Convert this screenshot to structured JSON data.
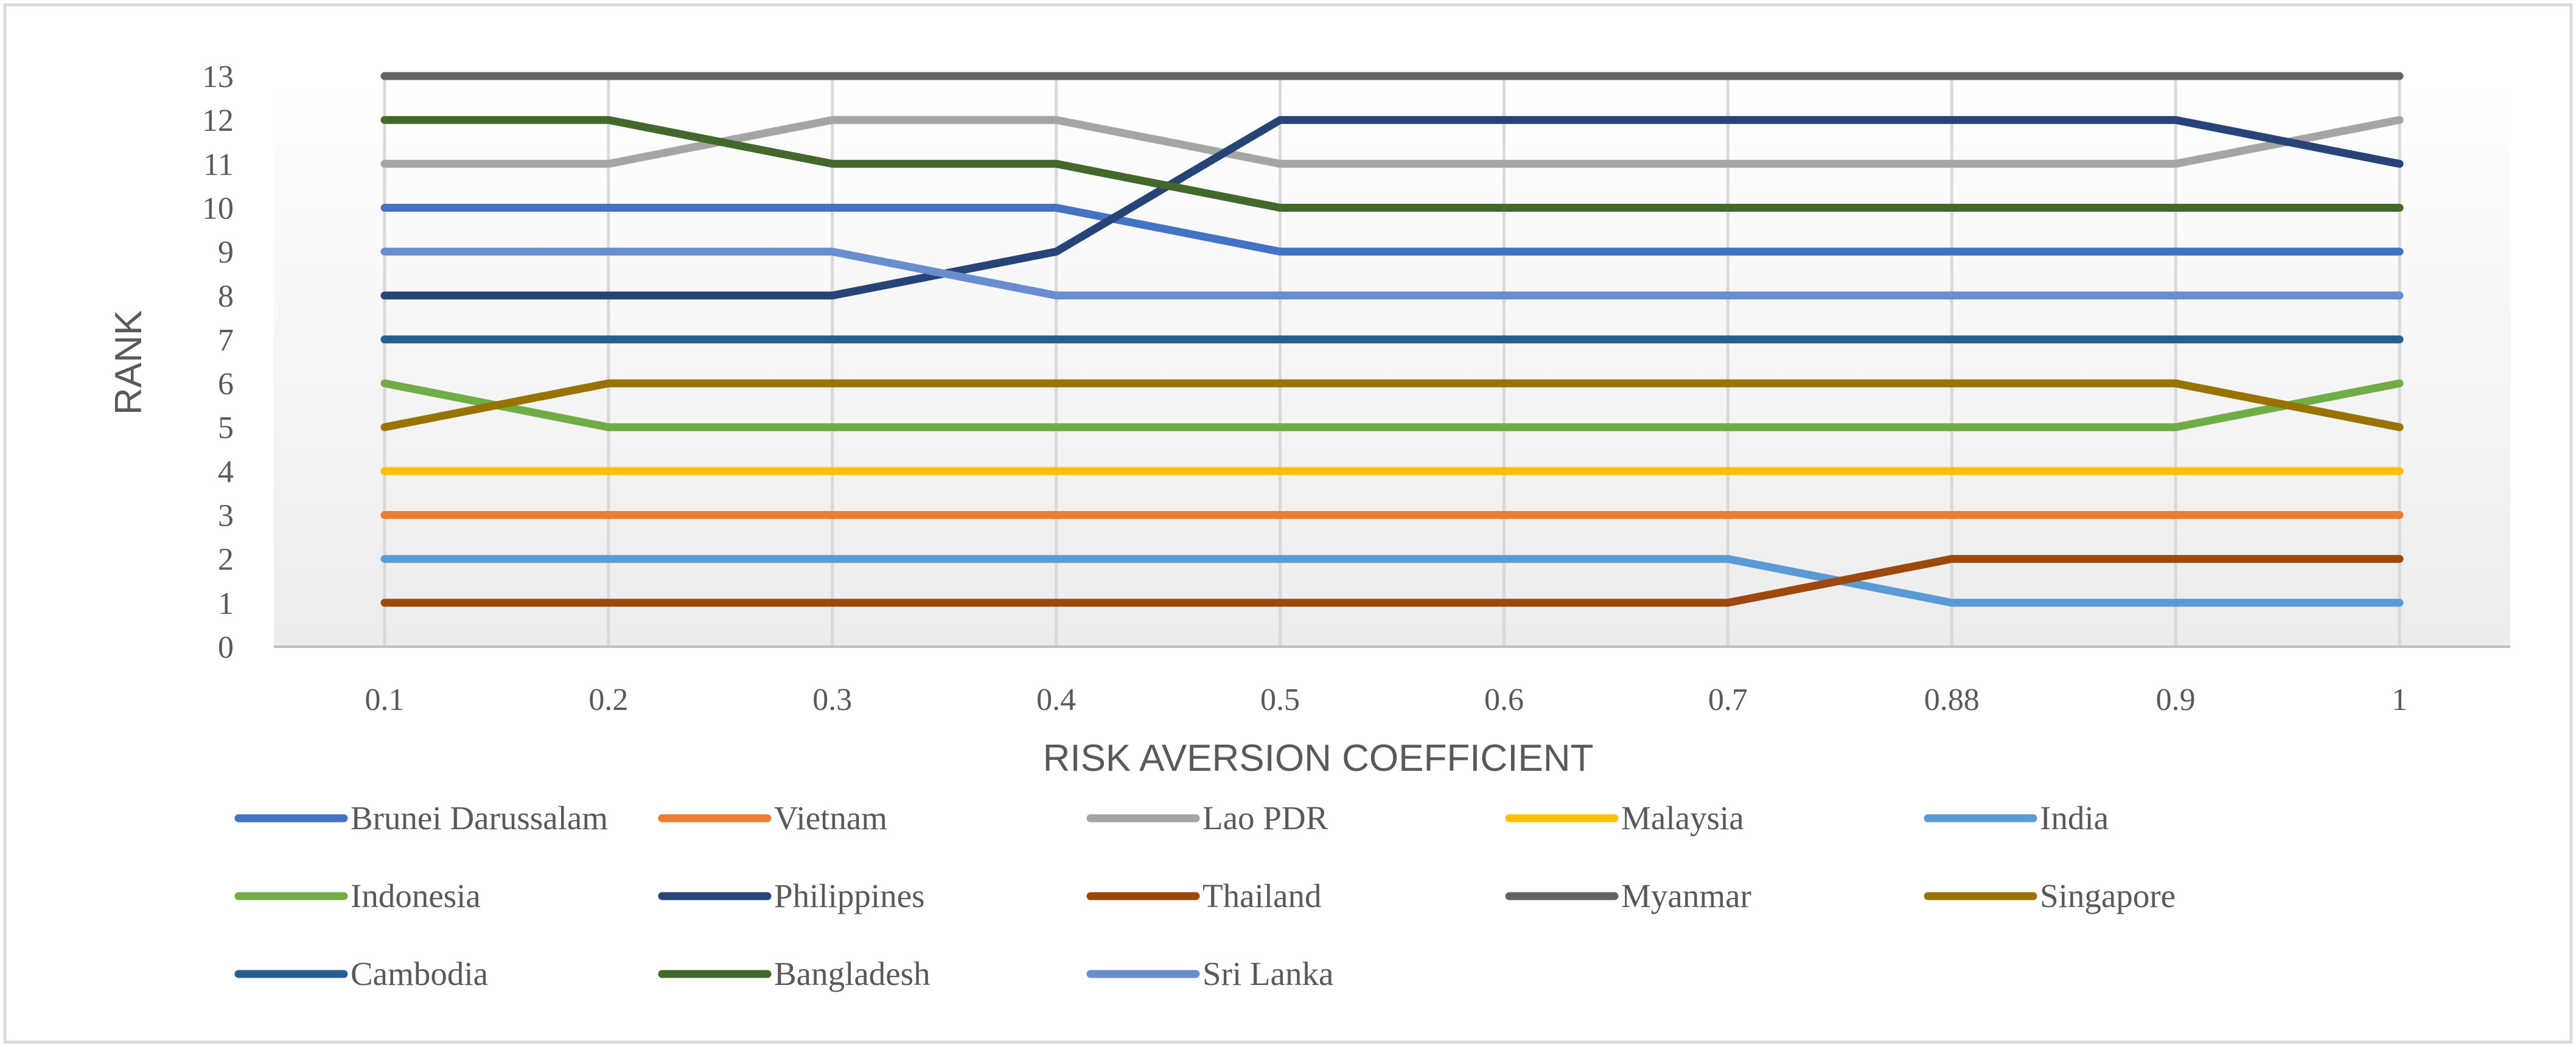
{
  "chart_data": {
    "type": "line",
    "title": "",
    "xlabel": "RISK AVERSION COEFFICIENT",
    "ylabel": "RANK",
    "categories": [
      "0.1",
      "0.2",
      "0.3",
      "0.4",
      "0.5",
      "0.6",
      "0.7",
      "0.88",
      "0.9",
      "1"
    ],
    "ylim": [
      0,
      13
    ],
    "yticks": [
      "0",
      "1",
      "2",
      "3",
      "4",
      "5",
      "6",
      "7",
      "8",
      "9",
      "10",
      "11",
      "12",
      "13"
    ],
    "grid": "vertical",
    "legend_position": "bottom",
    "series": [
      {
        "name": "Brunei Darussalam",
        "color": "#4472C4",
        "values": [
          10,
          10,
          10,
          10,
          9,
          9,
          9,
          9,
          9,
          9
        ]
      },
      {
        "name": "Vietnam",
        "color": "#ED7D31",
        "values": [
          3,
          3,
          3,
          3,
          3,
          3,
          3,
          3,
          3,
          3
        ]
      },
      {
        "name": "Lao PDR",
        "color": "#A5A5A5",
        "values": [
          11,
          11,
          12,
          12,
          11,
          11,
          11,
          11,
          11,
          12
        ]
      },
      {
        "name": "Malaysia",
        "color": "#FFC000",
        "values": [
          4,
          4,
          4,
          4,
          4,
          4,
          4,
          4,
          4,
          4
        ]
      },
      {
        "name": "India",
        "color": "#5B9BD5",
        "values": [
          2,
          2,
          2,
          2,
          2,
          2,
          2,
          1,
          1,
          1
        ]
      },
      {
        "name": "Indonesia",
        "color": "#70AD47",
        "values": [
          6,
          5,
          5,
          5,
          5,
          5,
          5,
          5,
          5,
          6
        ]
      },
      {
        "name": "Philippines",
        "color": "#264478",
        "values": [
          8,
          8,
          8,
          9,
          12,
          12,
          12,
          12,
          12,
          11
        ]
      },
      {
        "name": "Thailand",
        "color": "#9E480E",
        "values": [
          1,
          1,
          1,
          1,
          1,
          1,
          1,
          2,
          2,
          2
        ]
      },
      {
        "name": "Myanmar",
        "color": "#636363",
        "values": [
          13,
          13,
          13,
          13,
          13,
          13,
          13,
          13,
          13,
          13
        ]
      },
      {
        "name": "Singapore",
        "color": "#997300",
        "values": [
          5,
          6,
          6,
          6,
          6,
          6,
          6,
          6,
          6,
          5
        ]
      },
      {
        "name": "Cambodia",
        "color": "#255E91",
        "values": [
          7,
          7,
          7,
          7,
          7,
          7,
          7,
          7,
          7,
          7
        ]
      },
      {
        "name": "Bangladesh",
        "color": "#43682B",
        "values": [
          12,
          12,
          11,
          11,
          10,
          10,
          10,
          10,
          10,
          10
        ]
      },
      {
        "name": "Sri Lanka",
        "color": "#698ED0",
        "values": [
          9,
          9,
          9,
          8,
          8,
          8,
          8,
          8,
          8,
          8
        ]
      }
    ]
  }
}
